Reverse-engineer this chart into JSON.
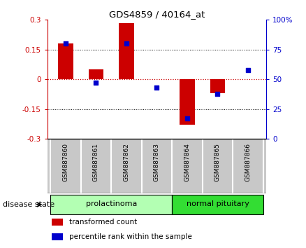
{
  "title": "GDS4859 / 40164_at",
  "samples": [
    "GSM887860",
    "GSM887861",
    "GSM887862",
    "GSM887863",
    "GSM887864",
    "GSM887865",
    "GSM887866"
  ],
  "red_bars": [
    0.18,
    0.05,
    0.285,
    0.0,
    -0.23,
    -0.07,
    0.0
  ],
  "blue_dots": [
    80,
    47,
    80,
    43,
    17,
    38,
    58
  ],
  "ylim_left": [
    -0.3,
    0.3
  ],
  "ylim_right": [
    0,
    100
  ],
  "yticks_left": [
    -0.3,
    -0.15,
    0.0,
    0.15,
    0.3
  ],
  "yticks_right": [
    0,
    25,
    50,
    75,
    100
  ],
  "ytick_labels_left": [
    "-0.3",
    "-0.15",
    "0",
    "0.15",
    "0.3"
  ],
  "ytick_labels_right": [
    "0",
    "25",
    "50",
    "75",
    "100%"
  ],
  "hlines": [
    0.15,
    0.0,
    -0.15
  ],
  "disease_groups": [
    {
      "label": "prolactinoma",
      "indices": [
        0,
        1,
        2,
        3
      ],
      "color": "#b3ffb3"
    },
    {
      "label": "normal pituitary",
      "indices": [
        4,
        5,
        6
      ],
      "color": "#33dd33"
    }
  ],
  "disease_state_label": "disease state",
  "legend_items": [
    {
      "label": "transformed count",
      "color": "#cc0000"
    },
    {
      "label": "percentile rank within the sample",
      "color": "#0000cc"
    }
  ],
  "bar_color": "#cc0000",
  "dot_color": "#0000cc",
  "bar_width": 0.5,
  "bg_color": "#ffffff",
  "plot_bg": "#ffffff",
  "axis_color_left": "#cc0000",
  "axis_color_right": "#0000cc",
  "zero_line_color": "#cc0000",
  "grid_color": "#000000",
  "xlabels_bg": "#c8c8c8",
  "xlabels_divider": "#ffffff"
}
